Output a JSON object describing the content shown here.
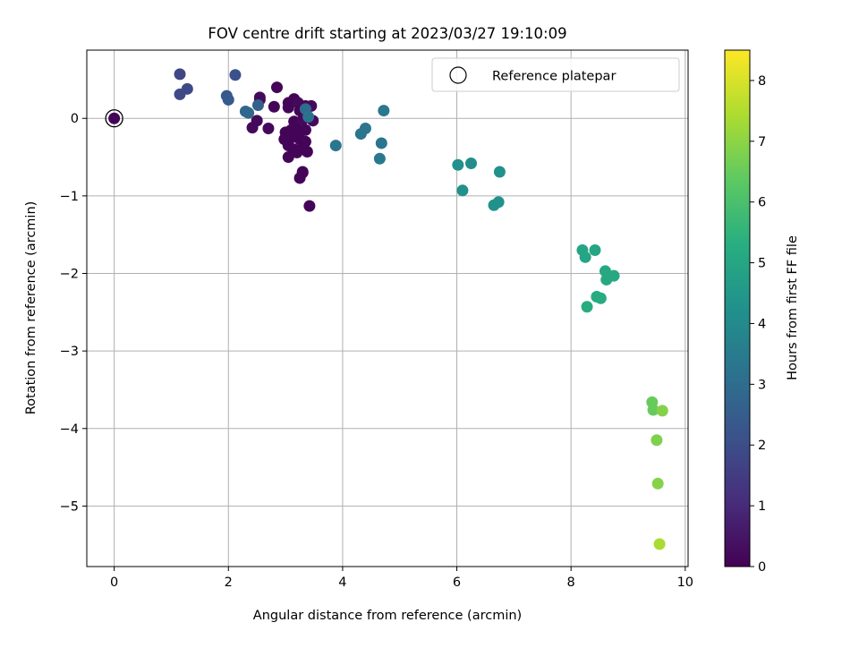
{
  "chart_data": {
    "type": "scatter",
    "title": "FOV centre drift starting at 2023/03/27 19:10:09",
    "xlabel": "Angular distance from reference (arcmin)",
    "ylabel": "Rotation from reference (arcmin)",
    "xlim": [
      -0.48,
      10.05
    ],
    "ylim": [
      -5.78,
      0.88
    ],
    "xticks": [
      0,
      2,
      4,
      6,
      8,
      10
    ],
    "xtick_labels": [
      "0",
      "2",
      "4",
      "6",
      "8",
      "10"
    ],
    "yticks": [
      0,
      -1,
      -2,
      -3,
      -4,
      -5
    ],
    "ytick_labels": [
      "0",
      "−1",
      "−2",
      "−3",
      "−4",
      "−5"
    ],
    "grid": true,
    "legend": {
      "placement": "top-right",
      "entries": [
        "Reference platepar"
      ]
    },
    "colorbar": {
      "label": "Hours from first FF file",
      "colormap": "viridis",
      "range": [
        0,
        8.5
      ],
      "ticks": [
        0,
        1,
        2,
        3,
        4,
        5,
        6,
        7,
        8
      ],
      "tick_labels": [
        "0",
        "1",
        "2",
        "3",
        "4",
        "5",
        "6",
        "7",
        "8"
      ]
    },
    "reference_point": {
      "x": 0,
      "y": 0
    },
    "points": [
      {
        "x": 0.0,
        "y": 0.0,
        "c": 0.1
      },
      {
        "x": 2.85,
        "y": 0.4,
        "c": 0.1
      },
      {
        "x": 2.55,
        "y": 0.27,
        "c": 0.2
      },
      {
        "x": 2.55,
        "y": 0.24,
        "c": 0.2
      },
      {
        "x": 2.8,
        "y": 0.15,
        "c": 0.1
      },
      {
        "x": 2.5,
        "y": -0.03,
        "c": 0.2
      },
      {
        "x": 2.42,
        "y": -0.12,
        "c": 0.2
      },
      {
        "x": 2.7,
        "y": -0.13,
        "c": 0.2
      },
      {
        "x": 3.05,
        "y": 0.2,
        "c": 0.1
      },
      {
        "x": 3.15,
        "y": 0.25,
        "c": 0.1
      },
      {
        "x": 3.22,
        "y": 0.2,
        "c": 0.2
      },
      {
        "x": 3.05,
        "y": 0.14,
        "c": 0.1
      },
      {
        "x": 3.25,
        "y": 0.1,
        "c": 0.1
      },
      {
        "x": 3.35,
        "y": 0.16,
        "c": 0.2
      },
      {
        "x": 3.45,
        "y": 0.16,
        "c": 0.2
      },
      {
        "x": 3.15,
        "y": -0.04,
        "c": 0.1
      },
      {
        "x": 3.3,
        "y": -0.02,
        "c": 0.2
      },
      {
        "x": 3.48,
        "y": -0.03,
        "c": 0.2
      },
      {
        "x": 3.0,
        "y": -0.18,
        "c": 0.1
      },
      {
        "x": 3.1,
        "y": -0.15,
        "c": 0.1
      },
      {
        "x": 3.2,
        "y": -0.14,
        "c": 0.1
      },
      {
        "x": 3.35,
        "y": -0.15,
        "c": 0.1
      },
      {
        "x": 2.98,
        "y": -0.27,
        "c": 0.1
      },
      {
        "x": 3.1,
        "y": -0.25,
        "c": 0.1
      },
      {
        "x": 3.25,
        "y": -0.27,
        "c": 0.1
      },
      {
        "x": 3.35,
        "y": -0.3,
        "c": 0.1
      },
      {
        "x": 3.05,
        "y": -0.35,
        "c": 0.1
      },
      {
        "x": 3.15,
        "y": -0.4,
        "c": 0.1
      },
      {
        "x": 3.3,
        "y": -0.38,
        "c": 0.1
      },
      {
        "x": 3.38,
        "y": -0.43,
        "c": 0.1
      },
      {
        "x": 3.05,
        "y": -0.5,
        "c": 0.1
      },
      {
        "x": 3.2,
        "y": -0.44,
        "c": 0.1
      },
      {
        "x": 3.3,
        "y": -0.69,
        "c": 0.1
      },
      {
        "x": 3.3,
        "y": -0.7,
        "c": 0.1
      },
      {
        "x": 3.25,
        "y": -0.77,
        "c": 0.1
      },
      {
        "x": 3.42,
        "y": -1.13,
        "c": 0.1
      },
      {
        "x": 1.15,
        "y": 0.57,
        "c": 1.8
      },
      {
        "x": 1.15,
        "y": 0.31,
        "c": 1.9
      },
      {
        "x": 1.28,
        "y": 0.38,
        "c": 1.9
      },
      {
        "x": 2.12,
        "y": 0.56,
        "c": 2.1
      },
      {
        "x": 1.97,
        "y": 0.29,
        "c": 2.3
      },
      {
        "x": 2.0,
        "y": 0.24,
        "c": 2.4
      },
      {
        "x": 2.3,
        "y": 0.09,
        "c": 2.8
      },
      {
        "x": 2.35,
        "y": 0.07,
        "c": 2.8
      },
      {
        "x": 2.52,
        "y": 0.17,
        "c": 2.6
      },
      {
        "x": 3.35,
        "y": 0.12,
        "c": 3.0
      },
      {
        "x": 3.4,
        "y": 0.02,
        "c": 3.2
      },
      {
        "x": 3.88,
        "y": -0.35,
        "c": 3.3
      },
      {
        "x": 4.32,
        "y": -0.2,
        "c": 3.3
      },
      {
        "x": 4.4,
        "y": -0.13,
        "c": 3.3
      },
      {
        "x": 4.72,
        "y": 0.1,
        "c": 3.4
      },
      {
        "x": 4.68,
        "y": -0.32,
        "c": 3.3
      },
      {
        "x": 4.65,
        "y": -0.52,
        "c": 3.4
      },
      {
        "x": 6.02,
        "y": -0.6,
        "c": 4.2
      },
      {
        "x": 6.25,
        "y": -0.58,
        "c": 4.1
      },
      {
        "x": 6.1,
        "y": -0.93,
        "c": 4.2
      },
      {
        "x": 6.75,
        "y": -0.69,
        "c": 4.3
      },
      {
        "x": 6.73,
        "y": -1.08,
        "c": 4.3
      },
      {
        "x": 6.65,
        "y": -1.12,
        "c": 4.3
      },
      {
        "x": 8.2,
        "y": -1.7,
        "c": 5.0
      },
      {
        "x": 8.25,
        "y": -1.79,
        "c": 5.0
      },
      {
        "x": 8.42,
        "y": -1.7,
        "c": 5.0
      },
      {
        "x": 8.6,
        "y": -1.97,
        "c": 5.1
      },
      {
        "x": 8.62,
        "y": -2.08,
        "c": 5.1
      },
      {
        "x": 8.75,
        "y": -2.03,
        "c": 5.1
      },
      {
        "x": 8.45,
        "y": -2.3,
        "c": 5.2
      },
      {
        "x": 8.52,
        "y": -2.32,
        "c": 5.2
      },
      {
        "x": 8.28,
        "y": -2.43,
        "c": 5.2
      },
      {
        "x": 9.42,
        "y": -3.66,
        "c": 6.5
      },
      {
        "x": 9.44,
        "y": -3.76,
        "c": 6.5
      },
      {
        "x": 9.6,
        "y": -3.77,
        "c": 6.9
      },
      {
        "x": 9.5,
        "y": -4.15,
        "c": 6.8
      },
      {
        "x": 9.52,
        "y": -4.71,
        "c": 6.9
      },
      {
        "x": 9.55,
        "y": -5.49,
        "c": 7.4
      }
    ]
  }
}
